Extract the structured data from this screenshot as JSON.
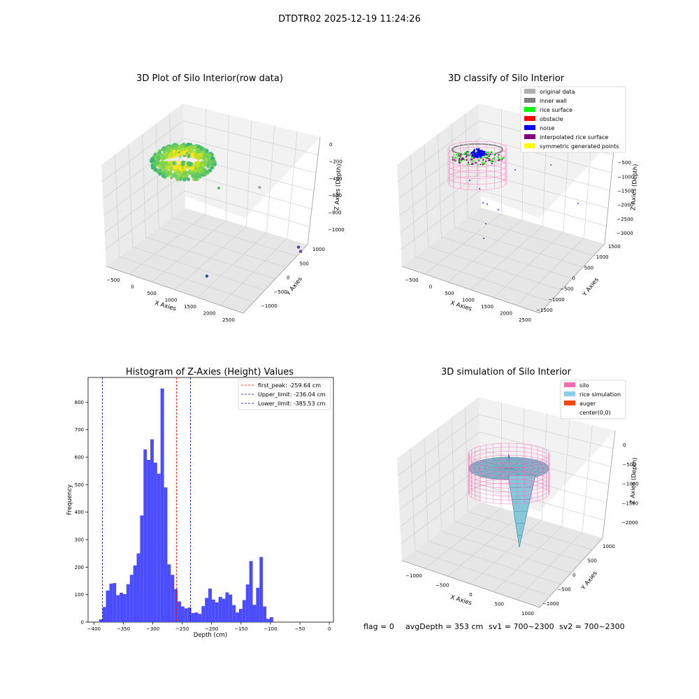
{
  "figure": {
    "suptitle": "DTDTR02 2025-12-19 11:24:26",
    "footer": {
      "flag": "flag = 0",
      "avg_depth": "avgDepth = 353 cm",
      "sv1": "sv1 = 700~2300",
      "sv2": "sv2 = 700~2300"
    }
  },
  "chart_data": [
    {
      "type": "scatter",
      "projection": "3d",
      "title": "3D Plot of Silo Interior(row data)",
      "xlabel": "X Axies",
      "ylabel": "Y Axies",
      "zlabel": "Z Axies (Depth)",
      "x_ticks": [
        "−500",
        "0",
        "500",
        "1000",
        "1500",
        "2000",
        "2500"
      ],
      "y_ticks": [
        "−1000",
        "−500",
        "0",
        "500",
        "1000"
      ],
      "z_ticks": [
        "0",
        "−200",
        "−400",
        "−600",
        "−800",
        "−1000"
      ],
      "xlim": [
        -650,
        2700
      ],
      "ylim": [
        -1250,
        1150
      ],
      "zlim": [
        -1120,
        30
      ],
      "colormap": "viridis",
      "points": [
        {
          "x": 2200,
          "y": 0,
          "z": -115,
          "color": "#a9a9a9"
        },
        {
          "x": 1500,
          "y": -850,
          "z": -1000,
          "color": "#32508c"
        },
        {
          "x": 2330,
          "y": 900,
          "z": -1020,
          "color": "#5a3c8c"
        },
        {
          "x": 2380,
          "y": 900,
          "z": -1060,
          "color": "#6e3c96"
        }
      ]
    },
    {
      "type": "scatter",
      "projection": "3d",
      "title": "3D classify of Silo Interior",
      "xlabel": "X Axies",
      "ylabel": "Y Axies",
      "zlabel": "Z Axies (Depth)",
      "x_ticks": [
        "−500",
        "0",
        "500",
        "1000",
        "1500",
        "2000",
        "2500"
      ],
      "y_ticks": [
        "−1500",
        "−1000",
        "−500",
        "0",
        "500",
        "1000",
        "1500"
      ],
      "z_ticks": [
        "0",
        "−500",
        "−1000",
        "−1500",
        "−2000",
        "−2500",
        "−3000"
      ],
      "legend": {
        "location": "upper right",
        "entries": [
          {
            "label": "original data",
            "color": "#b0b0b0"
          },
          {
            "label": "inner wall",
            "color": "#808080"
          },
          {
            "label": "rice surface",
            "color": "#00ff00"
          },
          {
            "label": "obstacle",
            "color": "#ff0000"
          },
          {
            "label": "noise",
            "color": "#0000ff"
          },
          {
            "label": "interpolated rice surface",
            "color": "#800080"
          },
          {
            "label": "symmetric generated points",
            "color": "#ffff00"
          }
        ]
      }
    },
    {
      "type": "bar",
      "title": "Histogram of Z-Axies (Height) Values",
      "xlabel": "Depth (cm)",
      "ylabel": "Frequency",
      "xlim": [
        -410,
        7
      ],
      "ylim": [
        0,
        890
      ],
      "x_ticks": [
        -400,
        -350,
        -300,
        -250,
        -200,
        -150,
        -100,
        -50,
        0
      ],
      "y_ticks": [
        0,
        100,
        200,
        300,
        400,
        500,
        600,
        700,
        800
      ],
      "bar_color": "#4c4cff",
      "bin_width": 5.8,
      "bin_starts": [
        -391.2,
        -385.4,
        -379.6,
        -373.8,
        -368.0,
        -362.2,
        -356.4,
        -350.6,
        -344.8,
        -339.0,
        -333.2,
        -327.4,
        -321.6,
        -315.8,
        -310.0,
        -304.2,
        -298.4,
        -292.6,
        -286.8,
        -281.0,
        -275.2,
        -269.4,
        -263.6,
        -257.8,
        -252.0,
        -246.2,
        -240.4,
        -234.6,
        -228.8,
        -223.0,
        -217.2,
        -211.4,
        -205.6,
        -199.8,
        -194.0,
        -188.2,
        -182.4,
        -176.6,
        -170.8,
        -165.0,
        -159.2,
        -153.4,
        -147.6,
        -141.8,
        -136.0,
        -130.2,
        -124.4,
        -118.6,
        -112.8,
        -107.0,
        -101.2,
        -95.4,
        -89.6,
        -83.8,
        -78.0,
        -72.2,
        -66.4,
        -60.6,
        -54.8,
        -49.0,
        -43.2,
        -37.4,
        -31.6,
        -25.8,
        -20.0,
        -14.2,
        -8.4,
        -2.6
      ],
      "values": [
        10,
        55,
        115,
        140,
        142,
        98,
        107,
        102,
        138,
        172,
        206,
        250,
        388,
        628,
        590,
        665,
        580,
        540,
        850,
        490,
        210,
        172,
        120,
        75,
        57,
        50,
        53,
        33,
        35,
        30,
        58,
        88,
        122,
        82,
        72,
        92,
        85,
        108,
        100,
        62,
        35,
        48,
        80,
        137,
        222,
        63,
        125,
        237,
        57,
        12,
        18,
        0,
        0,
        0,
        0,
        0,
        0,
        0,
        0,
        0,
        0,
        0,
        0,
        0,
        0,
        0,
        0,
        0
      ],
      "vlines": [
        {
          "label": "first_peak: -259.64 cm",
          "x": -259.64,
          "color": "#ff0000"
        },
        {
          "label": "Upper_limit: -236.04 cm",
          "x": -236.04,
          "color": "#00008b"
        },
        {
          "label": "Lower_limit: -385.53 cm",
          "x": -385.53,
          "color": "#00008b"
        }
      ],
      "legend": {
        "location": "upper right"
      }
    },
    {
      "type": "area",
      "projection": "3d",
      "title": "3D simulation of Silo Interior",
      "xlabel": "X Axies",
      "ylabel": "Y Axies",
      "zlabel": "Z Axies (Depth)",
      "x_ticks": [
        "−1000",
        "−500",
        "0",
        "500",
        "1000"
      ],
      "y_ticks": [
        "−1000",
        "−500",
        "0",
        "500",
        "1000"
      ],
      "z_ticks": [
        "0",
        "−500",
        "−1000",
        "−1500",
        "−2000"
      ],
      "legend": {
        "location": "upper right",
        "entries": [
          {
            "label": "silo",
            "color": "#ff69b4"
          },
          {
            "label": "rice simulation",
            "color": "#87ceeb"
          },
          {
            "label": "auger",
            "color": "#ff4500"
          },
          {
            "label": "center(0,0)",
            "color": "#ffffff"
          }
        ]
      }
    }
  ]
}
